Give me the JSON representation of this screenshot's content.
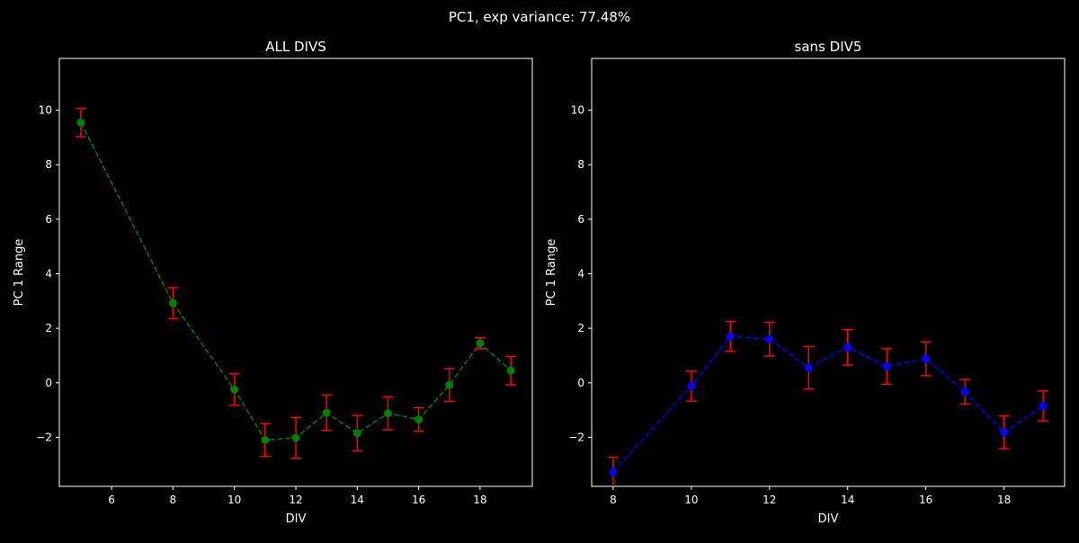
{
  "figure": {
    "suptitle": "PC1, exp variance: 77.48%"
  },
  "chart_data": [
    {
      "type": "line",
      "title": "ALL DIVS",
      "xlabel": "DIV",
      "ylabel": "PC 1 Range",
      "xlim": [
        4.3,
        19.7
      ],
      "ylim": [
        -3.8,
        11.9
      ],
      "xticks": [
        6,
        8,
        10,
        12,
        14,
        16,
        18
      ],
      "yticks": [
        -2,
        0,
        2,
        4,
        6,
        8,
        10
      ],
      "grid": false,
      "series": [
        {
          "color": "#008000",
          "marker_color": "#008000",
          "errorbar_color": "#ff0000",
          "line_style": "dashed",
          "x": [
            5,
            8,
            10,
            11,
            12,
            13,
            14,
            15,
            16,
            17,
            18,
            19
          ],
          "y": [
            9.55,
            2.92,
            -0.25,
            -2.1,
            -2.02,
            -1.1,
            -1.85,
            -1.12,
            -1.35,
            -0.08,
            1.45,
            0.45
          ],
          "err": [
            0.52,
            0.57,
            0.58,
            0.6,
            0.75,
            0.65,
            0.65,
            0.6,
            0.43,
            0.6,
            0.2,
            0.52
          ]
        }
      ]
    },
    {
      "type": "line",
      "title": "sans DIV5",
      "xlabel": "DIV",
      "ylabel": "PC 1 Range",
      "xlim": [
        7.45,
        19.55
      ],
      "ylim": [
        -3.8,
        11.9
      ],
      "xticks": [
        8,
        10,
        12,
        14,
        16,
        18
      ],
      "yticks": [
        -2,
        0,
        2,
        4,
        6,
        8,
        10
      ],
      "grid": false,
      "series": [
        {
          "color": "#0000ff",
          "marker_color": "#0000ff",
          "errorbar_color": "#ff0000",
          "line_style": "dashed",
          "x": [
            8,
            10,
            11,
            12,
            13,
            14,
            15,
            16,
            17,
            18,
            19
          ],
          "y": [
            -3.28,
            -0.12,
            1.7,
            1.6,
            0.55,
            1.3,
            0.6,
            0.88,
            -0.33,
            -1.82,
            -0.85
          ],
          "err": [
            0.55,
            0.55,
            0.55,
            0.62,
            0.78,
            0.65,
            0.65,
            0.62,
            0.45,
            0.6,
            0.55
          ]
        }
      ]
    }
  ]
}
